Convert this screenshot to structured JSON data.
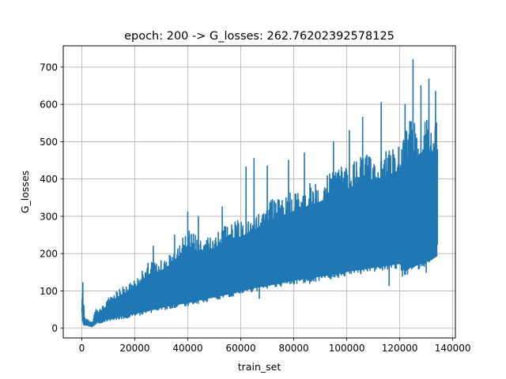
{
  "chart_data": {
    "type": "line",
    "title": "epoch: 200 -> G_losses: 262.76202392578125",
    "xlabel": "train_set",
    "ylabel": "G_losses",
    "xlim": [
      -7000,
      141000
    ],
    "ylim": [
      -26,
      757
    ],
    "xticks": [
      0,
      20000,
      40000,
      60000,
      80000,
      100000,
      120000,
      140000
    ],
    "yticks": [
      0,
      100,
      200,
      300,
      400,
      500,
      600,
      700
    ],
    "grid": true,
    "line_color": "#1f77b4",
    "x_last": 134200,
    "envelope": {
      "x": [
        0,
        400,
        1000,
        2000,
        4000,
        5000,
        6000,
        8000,
        10000,
        15000,
        20000,
        25000,
        30000,
        35000,
        40000,
        45000,
        50000,
        55000,
        60000,
        65000,
        70000,
        75000,
        80000,
        85000,
        90000,
        95000,
        100000,
        105000,
        110000,
        115000,
        120000,
        122000,
        124000,
        125000,
        126000,
        128000,
        130000,
        132000,
        133000,
        134200
      ],
      "lower": [
        40,
        5,
        8,
        6,
        4,
        10,
        12,
        15,
        20,
        25,
        32,
        40,
        48,
        55,
        60,
        68,
        75,
        82,
        90,
        98,
        105,
        110,
        118,
        122,
        128,
        133,
        140,
        145,
        150,
        155,
        160,
        140,
        150,
        150,
        155,
        160,
        165,
        170,
        175,
        180
      ],
      "upper": [
        65,
        120,
        30,
        25,
        15,
        50,
        50,
        60,
        80,
        110,
        130,
        175,
        185,
        215,
        270,
        240,
        255,
        285,
        290,
        310,
        340,
        355,
        370,
        385,
        400,
        420,
        440,
        460,
        470,
        480,
        500,
        540,
        560,
        580,
        540,
        560,
        560,
        560,
        560,
        560
      ]
    },
    "spikes": [
      {
        "x": 400,
        "y": 122
      },
      {
        "x": 27000,
        "y": 220
      },
      {
        "x": 35000,
        "y": 250
      },
      {
        "x": 40000,
        "y": 312
      },
      {
        "x": 44000,
        "y": 300
      },
      {
        "x": 53000,
        "y": 325
      },
      {
        "x": 62000,
        "y": 432
      },
      {
        "x": 65000,
        "y": 455
      },
      {
        "x": 70000,
        "y": 435
      },
      {
        "x": 78000,
        "y": 450
      },
      {
        "x": 84000,
        "y": 470
      },
      {
        "x": 95000,
        "y": 500
      },
      {
        "x": 101000,
        "y": 530
      },
      {
        "x": 106000,
        "y": 565
      },
      {
        "x": 113000,
        "y": 605
      },
      {
        "x": 122000,
        "y": 600
      },
      {
        "x": 125000,
        "y": 720
      },
      {
        "x": 128000,
        "y": 650
      },
      {
        "x": 131000,
        "y": 668
      },
      {
        "x": 133500,
        "y": 635
      }
    ],
    "dips": [
      {
        "x": 67000,
        "y": 80
      },
      {
        "x": 86000,
        "y": 120
      },
      {
        "x": 116000,
        "y": 115
      },
      {
        "x": 121000,
        "y": 140
      },
      {
        "x": 130000,
        "y": 150
      }
    ]
  }
}
